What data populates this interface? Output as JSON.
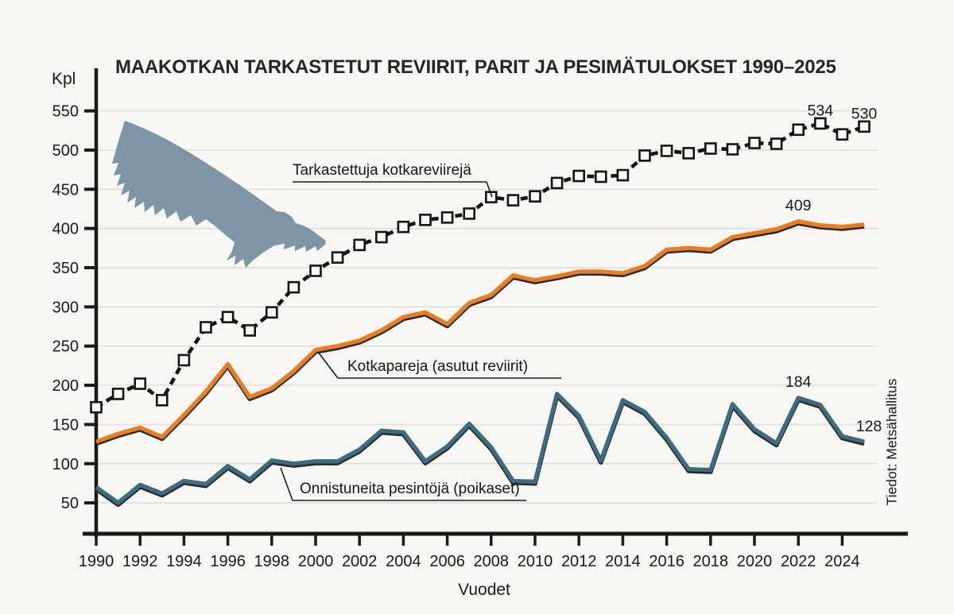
{
  "title": "MAAKOTKAN TARKASTETUT REVIIRIT, PARIT JA PESIMÄTULOKSET 1990–2025",
  "y_axis": {
    "label": "Kpl",
    "ticks": [
      550,
      500,
      450,
      400,
      350,
      300,
      250,
      200,
      150,
      100,
      50
    ]
  },
  "x_axis": {
    "label": "Vuodet",
    "ticks": [
      1990,
      1992,
      1994,
      1996,
      1998,
      2000,
      2002,
      2004,
      2006,
      2008,
      2010,
      2012,
      2014,
      2016,
      2018,
      2020,
      2022,
      2024
    ]
  },
  "source_note": "Tiedot: Metsähallitus",
  "icons": {
    "eagle": "eagle-silhouette-icon"
  },
  "colors": {
    "background": "#F7F6F3",
    "ink": "#1A1A1A",
    "grid": "#DCDBD7",
    "territories_line": "#151515",
    "pairs_line": "#E87E23",
    "nestings_line": "#3D6B80",
    "marker_fill": "#FAF9F7",
    "eagle": "#7D95A4"
  },
  "chart_data": {
    "type": "line",
    "title": "MAAKOTKAN TARKASTETUT REVIIRIT, PARIT JA PESIMÄTULOKSET 1990–2025",
    "xlabel": "Vuodet",
    "ylabel": "Kpl",
    "ylim": [
      0,
      570
    ],
    "grid": "horizontal, every 50",
    "legend": "inline annotated labels",
    "x": [
      1990,
      1991,
      1992,
      1993,
      1994,
      1995,
      1996,
      1997,
      1998,
      1999,
      2000,
      2001,
      2002,
      2003,
      2004,
      2005,
      2006,
      2007,
      2008,
      2009,
      2010,
      2011,
      2012,
      2013,
      2014,
      2015,
      2016,
      2017,
      2018,
      2019,
      2020,
      2021,
      2022,
      2023,
      2024,
      2025
    ],
    "series": [
      {
        "name": "Tarkastettuja kotkareviirejä",
        "style": "dashed black line with white square markers",
        "values": [
          172,
          189,
          202,
          181,
          232,
          274,
          287,
          270,
          293,
          325,
          346,
          363,
          379,
          389,
          402,
          411,
          414,
          419,
          440,
          436,
          441,
          458,
          467,
          466,
          468,
          493,
          499,
          496,
          502,
          501,
          509,
          508,
          526,
          534,
          520,
          530
        ]
      },
      {
        "name": "Kotkapareja (asutut reviirit)",
        "style": "solid orange line",
        "values": [
          128,
          138,
          146,
          134,
          162,
          192,
          227,
          185,
          196,
          218,
          245,
          250,
          257,
          270,
          287,
          293,
          278,
          305,
          315,
          340,
          334,
          339,
          345,
          345,
          343,
          352,
          373,
          375,
          373,
          389,
          394,
          399,
          409,
          404,
          402,
          405
        ]
      },
      {
        "name": "Onnistuneita pesintöjä (poikaset)",
        "style": "solid blue line",
        "values": [
          70,
          50,
          73,
          62,
          78,
          74,
          97,
          80,
          104,
          100,
          103,
          103,
          118,
          142,
          140,
          103,
          122,
          151,
          121,
          78,
          77,
          189,
          161,
          104,
          181,
          166,
          133,
          93,
          92,
          176,
          144,
          126,
          184,
          175,
          135,
          128
        ]
      }
    ]
  },
  "value_labels": [
    {
      "text": "534",
      "series": 0,
      "year": 2023
    },
    {
      "text": "530",
      "series": 0,
      "year": 2025
    },
    {
      "text": "409",
      "series": 1,
      "year": 2022
    },
    {
      "text": "184",
      "series": 2,
      "year": 2022
    },
    {
      "text": "128",
      "series": 2,
      "year": 2025
    }
  ]
}
